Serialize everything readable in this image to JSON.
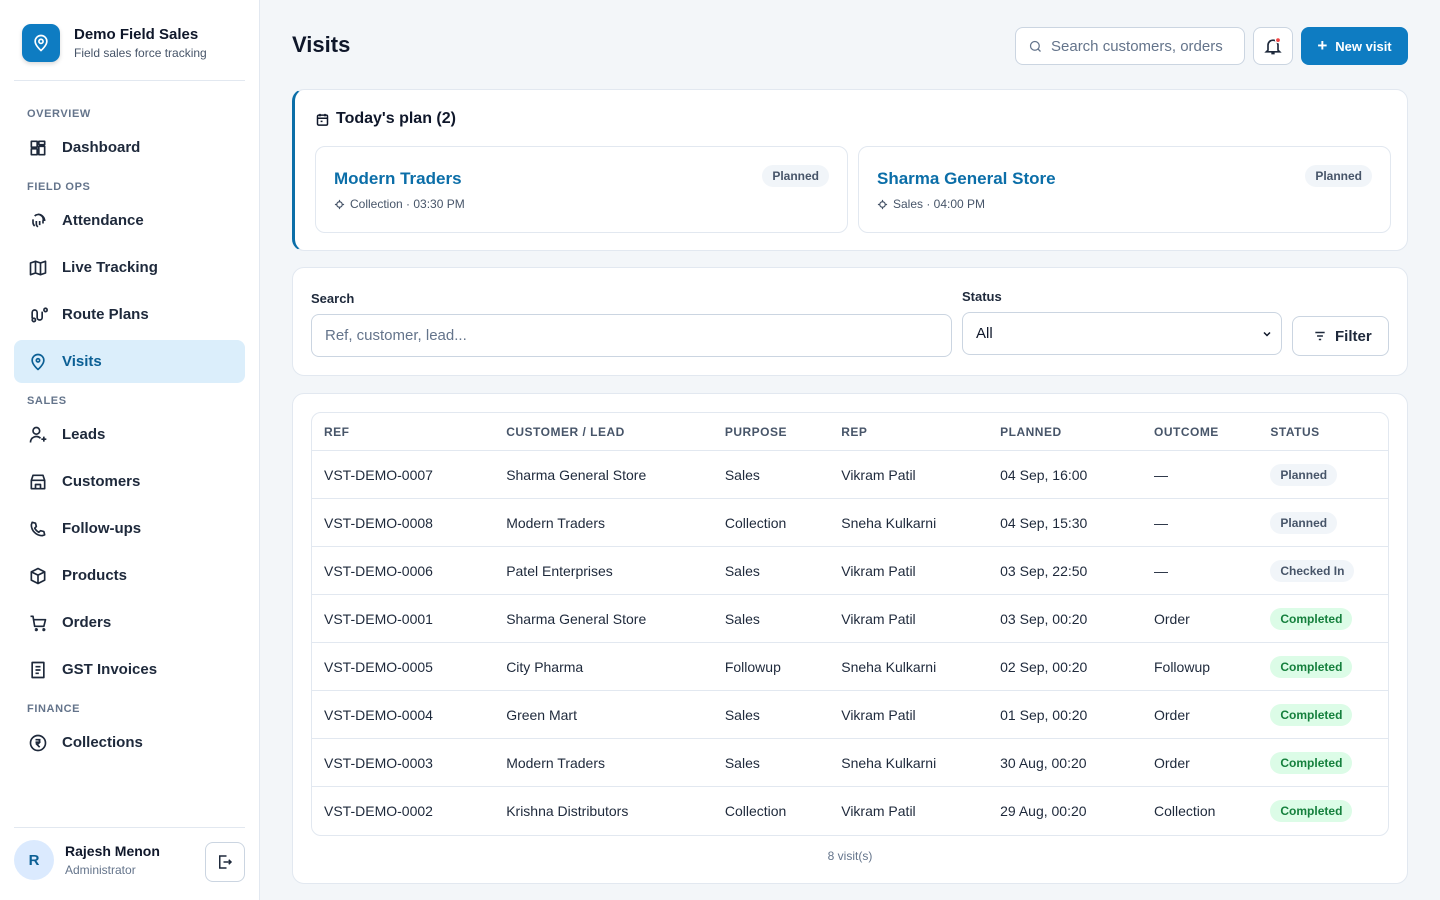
{
  "brand": {
    "name": "Demo Field Sales",
    "tagline": "Field sales force tracking"
  },
  "nav": [
    {
      "heading": "OVERVIEW",
      "items": [
        {
          "label": "Dashboard",
          "active": false
        }
      ]
    },
    {
      "heading": "FIELD OPS",
      "items": [
        {
          "label": "Attendance",
          "active": false
        },
        {
          "label": "Live Tracking",
          "active": false
        },
        {
          "label": "Route Plans",
          "active": false
        },
        {
          "label": "Visits",
          "active": true
        }
      ]
    },
    {
      "heading": "SALES",
      "items": [
        {
          "label": "Leads",
          "active": false
        },
        {
          "label": "Customers",
          "active": false
        },
        {
          "label": "Follow-ups",
          "active": false
        },
        {
          "label": "Products",
          "active": false
        },
        {
          "label": "Orders",
          "active": false
        },
        {
          "label": "GST Invoices",
          "active": false
        }
      ]
    },
    {
      "heading": "FINANCE",
      "items": [
        {
          "label": "Collections",
          "active": false
        }
      ]
    }
  ],
  "user": {
    "initial": "R",
    "name": "Rajesh Menon",
    "role": "Administrator"
  },
  "header": {
    "title": "Visits",
    "search_placeholder": "Search customers, orders",
    "new_button": "New visit"
  },
  "plan": {
    "title": "Today's plan (2)",
    "cards": [
      {
        "name": "Modern Traders",
        "status": "Planned",
        "detail": "Collection · 03:30 PM"
      },
      {
        "name": "Sharma General Store",
        "status": "Planned",
        "detail": "Sales · 04:00 PM"
      }
    ]
  },
  "filters": {
    "search_label": "Search",
    "search_placeholder": "Ref, customer, lead...",
    "status_label": "Status",
    "status_value": "All",
    "button": "Filter"
  },
  "table": {
    "columns": [
      "REF",
      "CUSTOMER / LEAD",
      "PURPOSE",
      "REP",
      "PLANNED",
      "OUTCOME",
      "STATUS"
    ],
    "rows": [
      [
        "VST-DEMO-0007",
        "Sharma General Store",
        "Sales",
        "Vikram Patil",
        "04 Sep, 16:00",
        "—",
        "Planned"
      ],
      [
        "VST-DEMO-0008",
        "Modern Traders",
        "Collection",
        "Sneha Kulkarni",
        "04 Sep, 15:30",
        "—",
        "Planned"
      ],
      [
        "VST-DEMO-0006",
        "Patel Enterprises",
        "Sales",
        "Vikram Patil",
        "03 Sep, 22:50",
        "—",
        "Checked In"
      ],
      [
        "VST-DEMO-0001",
        "Sharma General Store",
        "Sales",
        "Vikram Patil",
        "03 Sep, 00:20",
        "Order",
        "Completed"
      ],
      [
        "VST-DEMO-0005",
        "City Pharma",
        "Followup",
        "Sneha Kulkarni",
        "02 Sep, 00:20",
        "Followup",
        "Completed"
      ],
      [
        "VST-DEMO-0004",
        "Green Mart",
        "Sales",
        "Vikram Patil",
        "01 Sep, 00:20",
        "Order",
        "Completed"
      ],
      [
        "VST-DEMO-0003",
        "Modern Traders",
        "Sales",
        "Sneha Kulkarni",
        "30 Aug, 00:20",
        "Order",
        "Completed"
      ],
      [
        "VST-DEMO-0002",
        "Krishna Distributors",
        "Collection",
        "Vikram Patil",
        "29 Aug, 00:20",
        "Collection",
        "Completed"
      ]
    ],
    "status_colors": [
      "#f1f5f9",
      "#f1f5f9",
      "#f1f5f9",
      "#dcfce7",
      "#dcfce7",
      "#dcfce7",
      "#dcfce7",
      "#dcfce7"
    ],
    "footer": "8 visit(s)"
  }
}
